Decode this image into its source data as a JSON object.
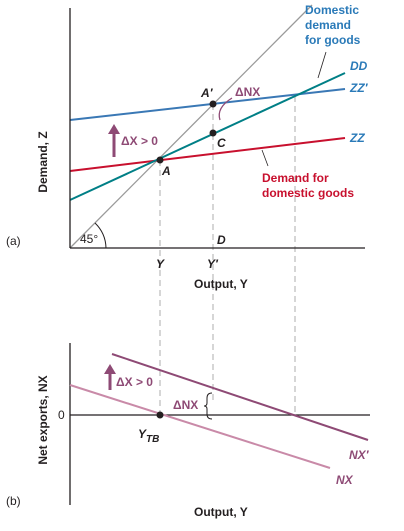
{
  "colors": {
    "axis": "#231f20",
    "line_45": "#9a9a9a",
    "dd": "#007f86",
    "zz": "#c8102e",
    "zz_prime": "#3a78b5",
    "annotation": "#8e4a75",
    "nx": "#c98aa8",
    "nx_prime": "#8e4a75",
    "dashed": "#bbbbbb",
    "domestic_demand_label": "#2a7ab8",
    "zz_label": "#c8102e"
  },
  "panel_a": {
    "panel_label": "(a)",
    "y_axis_label": "Demand, Z",
    "x_axis_label": "Output, Y",
    "angle_label": "45°",
    "delta_x_label": "ΔX > 0",
    "delta_nx_label": "ΔNX",
    "domestic_demand_label_lines": [
      "Domestic",
      "demand",
      "for goods"
    ],
    "zz_label_lines": [
      "Demand for",
      "domestic goods"
    ],
    "curve_dd": "DD",
    "curve_zz_prime": "ZZ′",
    "curve_zz": "ZZ",
    "point_a_prime": "A′",
    "point_c": "C",
    "point_a": "A",
    "point_d": "D",
    "tick_y": "Y",
    "tick_y_prime": "Y′"
  },
  "panel_b": {
    "panel_label": "(b)",
    "y_axis_label": "Net exports, NX",
    "x_axis_label": "Output, Y",
    "zero_label": "0",
    "delta_x_label": "ΔX > 0",
    "delta_nx_label": "ΔNX",
    "point_ytb": "Y",
    "point_ytb_sub": "TB",
    "curve_nx_prime": "NX′",
    "curve_nx": "NX"
  }
}
